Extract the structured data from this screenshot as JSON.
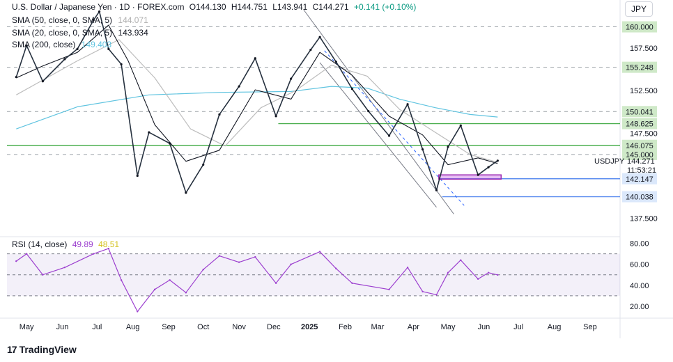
{
  "header": {
    "title": "U.S. Dollar / Japanese Yen · 1D · FOREX.com",
    "open": "O144.130",
    "high": "H144.751",
    "low": "L143.941",
    "close": "C144.271",
    "change": "+0.141 (+0.10%)",
    "currency": "JPY"
  },
  "indicators": [
    {
      "label": "SMA (50, close, 0, SMA, 5)",
      "value": "144.071",
      "color": "#9e9e9e"
    },
    {
      "label": "SMA (20, close, 0, SMA, 5)",
      "value": "143.934",
      "color": "#131722"
    },
    {
      "label": "SMA (200, close)",
      "value": "149.403",
      "color": "#60c4e0"
    }
  ],
  "rsi": {
    "label": "RSI (14, close)",
    "value": "49.89",
    "ma_value": "48.51",
    "line_color": "#9c3fcf",
    "ma_color": "#e0d03a"
  },
  "symbol": {
    "label": "USDJPY",
    "price": "144.271",
    "countdown": "11:53:21"
  },
  "branding": "TradingView",
  "chart_data": {
    "type": "line",
    "title": "U.S. Dollar / Japanese Yen · 1D · FOREX.com",
    "price_axis": {
      "ticks": [
        "157.500",
        "152.500",
        "147.500",
        "137.500"
      ],
      "range": [
        135.5,
        162.5
      ]
    },
    "rsi_axis": {
      "ticks": [
        "80.00",
        "60.00",
        "40.00",
        "20.00"
      ],
      "range": [
        10,
        85
      ],
      "band": [
        30,
        70
      ]
    },
    "time_axis": [
      "May",
      "Jun",
      "Jul",
      "Aug",
      "Sep",
      "Oct",
      "Nov",
      "Dec",
      "2025",
      "Feb",
      "Mar",
      "Apr",
      "May",
      "Jun",
      "Jul",
      "Aug",
      "Sep"
    ],
    "horizontal_levels": [
      {
        "label": "160.000",
        "value": 160.0,
        "style": "dashed"
      },
      {
        "label": "155.248",
        "value": 155.248,
        "style": "dashed"
      },
      {
        "label": "150.041",
        "value": 150.041,
        "style": "dashed"
      },
      {
        "label": "148.625",
        "value": 148.625,
        "style": "solid"
      },
      {
        "label": "146.075",
        "value": 146.075,
        "style": "solid"
      },
      {
        "label": "145.000",
        "value": 145.0,
        "style": "dashed"
      },
      {
        "label": "142.147",
        "value": 142.147,
        "style": "solid"
      },
      {
        "label": "140.038",
        "value": 140.038,
        "style": "solid"
      }
    ],
    "series": [
      {
        "name": "USDJPY",
        "x": [
          "2024-04-22",
          "2024-05-01",
          "2024-05-15",
          "2024-06-03",
          "2024-06-14",
          "2024-06-28",
          "2024-07-03",
          "2024-07-11",
          "2024-07-22",
          "2024-08-05",
          "2024-08-15",
          "2024-09-02",
          "2024-09-16",
          "2024-10-01",
          "2024-10-15",
          "2024-11-01",
          "2024-11-15",
          "2024-12-03",
          "2024-12-16",
          "2025-01-02",
          "2025-01-10",
          "2025-01-24",
          "2025-02-07",
          "2025-02-21",
          "2025-03-11",
          "2025-03-27",
          "2025-04-09",
          "2025-04-21",
          "2025-05-01",
          "2025-05-12",
          "2025-05-27",
          "2025-06-05",
          "2025-06-13"
        ],
        "values": [
          154.1,
          157.8,
          153.6,
          156.2,
          157.4,
          160.8,
          161.8,
          157.4,
          155.6,
          142.5,
          147.6,
          146.3,
          140.5,
          143.8,
          149.7,
          153.0,
          156.3,
          149.5,
          153.9,
          157.3,
          158.8,
          155.9,
          152.7,
          150.1,
          147.2,
          150.9,
          145.6,
          140.8,
          145.9,
          148.4,
          142.6,
          143.5,
          144.271
        ]
      },
      {
        "name": "SMA (20, close, 0, SMA, 5)",
        "x": [
          "2024-04-22",
          "2024-05-15",
          "2024-06-14",
          "2024-07-11",
          "2024-07-28",
          "2024-08-20",
          "2024-09-16",
          "2024-10-15",
          "2024-11-15",
          "2024-12-16",
          "2025-01-10",
          "2025-02-07",
          "2025-03-11",
          "2025-04-09",
          "2025-05-01",
          "2025-05-27",
          "2025-06-13"
        ],
        "values": [
          154.0,
          155.4,
          157.0,
          160.2,
          156.0,
          148.5,
          144.2,
          145.5,
          152.6,
          151.5,
          157.0,
          154.3,
          149.5,
          147.3,
          143.8,
          144.6,
          143.934
        ]
      },
      {
        "name": "SMA (50, close, 0, SMA, 5)",
        "x": [
          "2024-04-22",
          "2024-06-14",
          "2024-07-20",
          "2024-08-20",
          "2024-09-20",
          "2024-10-20",
          "2024-11-20",
          "2024-12-20",
          "2025-01-20",
          "2025-02-20",
          "2025-03-20",
          "2025-04-20",
          "2025-05-20",
          "2025-06-13"
        ],
        "values": [
          152.0,
          156.0,
          158.5,
          154.0,
          148.0,
          146.0,
          150.5,
          152.5,
          155.5,
          154.2,
          150.3,
          147.6,
          145.0,
          144.071
        ]
      },
      {
        "name": "SMA (200, close)",
        "x": [
          "2024-04-22",
          "2024-06-14",
          "2024-08-15",
          "2024-10-15",
          "2024-12-16",
          "2025-01-20",
          "2025-02-20",
          "2025-03-20",
          "2025-04-20",
          "2025-05-20",
          "2025-06-13"
        ],
        "values": [
          148.0,
          150.6,
          152.0,
          152.3,
          152.4,
          153.0,
          152.8,
          151.5,
          150.5,
          149.7,
          149.403
        ]
      },
      {
        "name": "RSI (14, close)",
        "x": [
          "2024-04-22",
          "2024-05-01",
          "2024-05-15",
          "2024-06-03",
          "2024-06-28",
          "2024-07-11",
          "2024-07-22",
          "2024-08-05",
          "2024-08-20",
          "2024-09-02",
          "2024-09-16",
          "2024-10-01",
          "2024-10-15",
          "2024-11-01",
          "2024-11-15",
          "2024-12-03",
          "2024-12-16",
          "2025-01-10",
          "2025-01-24",
          "2025-02-07",
          "2025-03-11",
          "2025-03-27",
          "2025-04-09",
          "2025-04-21",
          "2025-05-01",
          "2025-05-12",
          "2025-05-27",
          "2025-06-05",
          "2025-06-13"
        ],
        "values": [
          63,
          70,
          50,
          57,
          70,
          75,
          45,
          15,
          36,
          45,
          33,
          55,
          68,
          62,
          67,
          42,
          60,
          72,
          56,
          42,
          36,
          57,
          34,
          31,
          52,
          64,
          46,
          52,
          49.89
        ]
      }
    ],
    "channel_lines": [
      {
        "from": [
          "2024-12-27",
          162.0
        ],
        "to": [
          "2025-05-06",
          138.0
        ],
        "style": "solid"
      },
      {
        "from": [
          "2025-01-10",
          155.8
        ],
        "to": [
          "2025-04-21",
          138.8
        ],
        "style": "solid"
      },
      {
        "from": [
          "2025-01-14",
          157.2
        ],
        "to": [
          "2025-05-15",
          139.0
        ],
        "style": "dashed"
      }
    ],
    "support_zone": {
      "from": "2025-04-23",
      "to": "2025-06-16",
      "low": 142.1,
      "high": 142.6
    },
    "grid": false,
    "legend": "top-left"
  }
}
